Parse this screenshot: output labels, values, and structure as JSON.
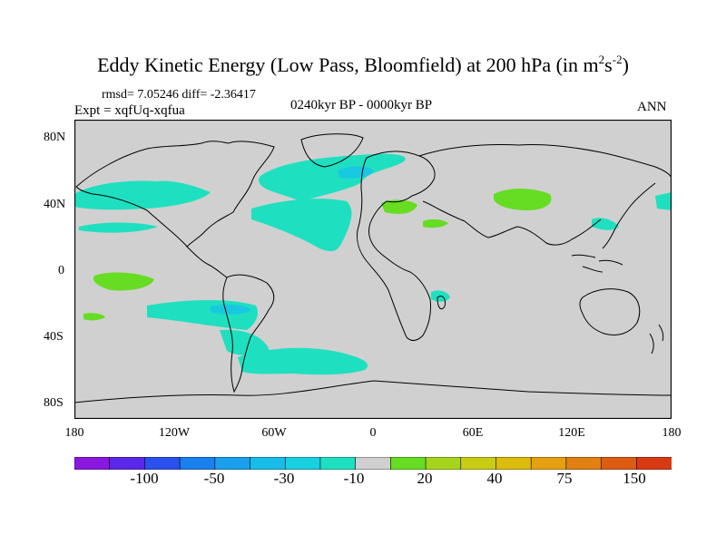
{
  "title": {
    "main": "Eddy Kinetic Energy (Low Pass, Bloomfield) at 200 hPa (in m",
    "sup1": "2",
    "mid": "s",
    "sup2": "-2",
    "end": ")"
  },
  "stats": "rmsd= 7.05246 diff= -2.36417",
  "expt": "Expt = xqfUq-xqfua",
  "period": "0240kyr BP - 0000kyr BP",
  "season": "ANN",
  "axes": {
    "lat_labels": [
      "80N",
      "40N",
      "0",
      "40S",
      "80S"
    ],
    "lon_labels": [
      "180",
      "120W",
      "60W",
      "0",
      "60E",
      "120E",
      "180"
    ]
  },
  "colorbar": {
    "colors": [
      "#8a18e0",
      "#5a28e8",
      "#2a50ee",
      "#1a80ee",
      "#1aa0ee",
      "#18bce8",
      "#18d0e0",
      "#1ee0c0",
      "#d0d0d0",
      "#66dd22",
      "#a6d41c",
      "#c8cc14",
      "#dcbc0c",
      "#e4a010",
      "#e28014",
      "#dc5c14",
      "#d83a12"
    ],
    "labels": [
      "-100",
      "-50",
      "-30",
      "-10",
      "20",
      "40",
      "75",
      "150"
    ]
  },
  "map": {
    "background": "#d0d0d0",
    "anomaly_positive": "#66dd22",
    "anomaly_negative": "#1ee0c0",
    "anomaly_strong_negative": "#18c8e0",
    "coastline": "#000000"
  }
}
